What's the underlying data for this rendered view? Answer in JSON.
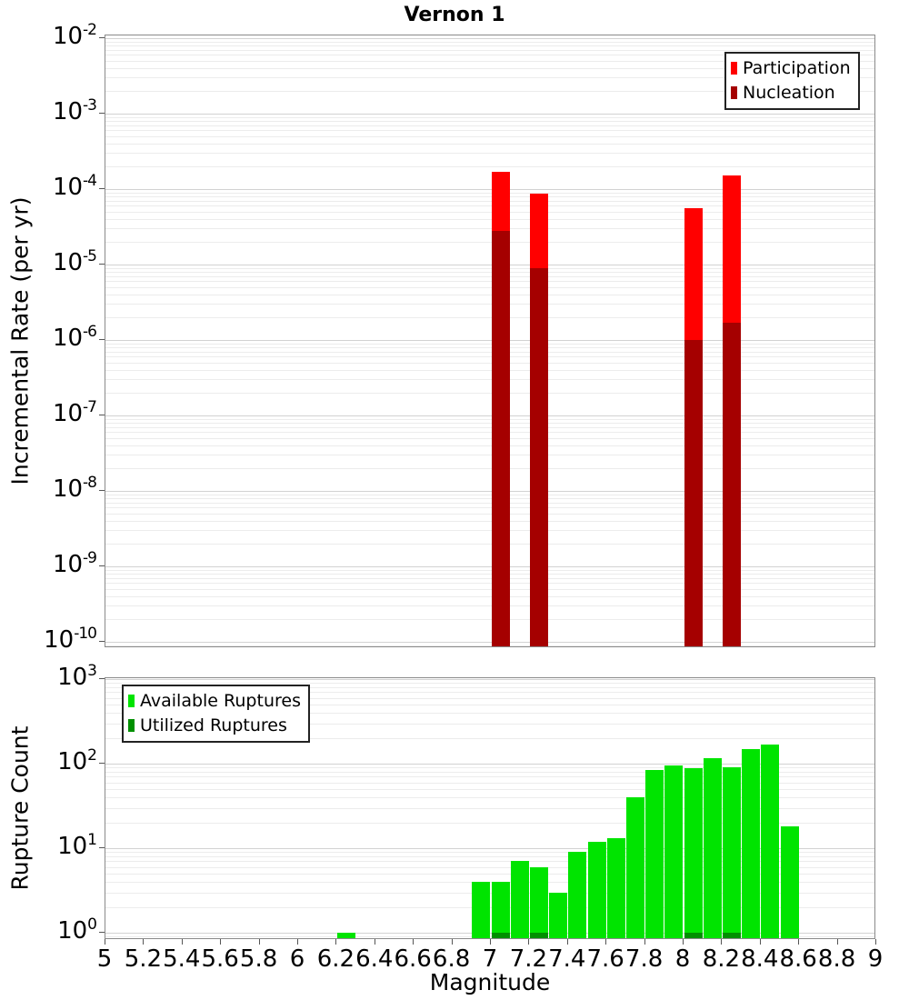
{
  "title": "Vernon 1",
  "chart_data": [
    {
      "type": "bar",
      "panel": "incremental-rate",
      "title": "Vernon 1",
      "xlabel": "Magnitude",
      "ylabel": "Incremental Rate (per yr)",
      "yscale": "log",
      "xlim": [
        5,
        9
      ],
      "ylim": [
        1e-10,
        0.01
      ],
      "y_tick_exponents": [
        -2,
        -3,
        -4,
        -5,
        -6,
        -7,
        -8,
        -9,
        -10
      ],
      "bin_width": 0.1,
      "grid": true,
      "legend_position": "top-right",
      "x": [
        7.05,
        7.25,
        8.05,
        8.25
      ],
      "series": [
        {
          "name": "Participation",
          "color": "#ff0000",
          "values": [
            0.00017,
            8.7e-05,
            5.6e-05,
            0.00015
          ]
        },
        {
          "name": "Nucleation",
          "color": "#a50000",
          "values": [
            2.8e-05,
            9e-06,
            1e-06,
            1.7e-06
          ]
        }
      ]
    },
    {
      "type": "bar",
      "panel": "rupture-count",
      "xlabel": "Magnitude",
      "ylabel": "Rupture Count",
      "yscale": "log",
      "xlim": [
        5,
        9
      ],
      "ylim": [
        1,
        1000
      ],
      "y_tick_exponents": [
        3,
        2,
        1,
        0
      ],
      "x_tick_step": 0.2,
      "x_ticks": [
        "5",
        "5.2",
        "5.4",
        "5.6",
        "5.8",
        "6",
        "6.2",
        "6.4",
        "6.6",
        "6.8",
        "7",
        "7.2",
        "7.4",
        "7.6",
        "7.8",
        "8",
        "8.2",
        "8.4",
        "8.6",
        "8.8",
        "9"
      ],
      "bin_width": 0.1,
      "grid": true,
      "legend_position": "top-left",
      "x": [
        6.25,
        6.95,
        7.05,
        7.15,
        7.25,
        7.35,
        7.45,
        7.55,
        7.65,
        7.75,
        7.85,
        7.95,
        8.05,
        8.15,
        8.25,
        8.35,
        8.45,
        8.55
      ],
      "series": [
        {
          "name": "Available Ruptures",
          "color": "#00e400",
          "values": [
            1,
            4,
            4,
            7,
            6,
            3,
            9,
            12,
            13,
            40,
            85,
            95,
            88,
            115,
            90,
            150,
            170,
            18
          ]
        },
        {
          "name": "Utilized Ruptures",
          "color": "#009000",
          "values": [
            0,
            0,
            1,
            0,
            1,
            0,
            0,
            0,
            0,
            0,
            0,
            0,
            1,
            0,
            1,
            0,
            0,
            0
          ]
        }
      ]
    }
  ]
}
